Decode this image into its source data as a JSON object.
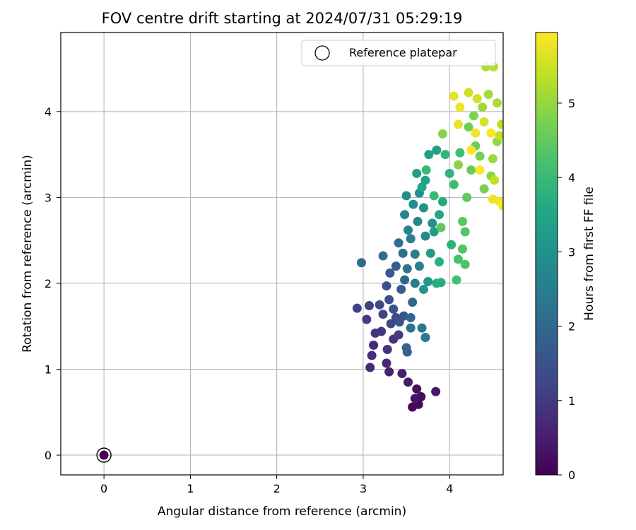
{
  "chart_data": {
    "type": "scatter",
    "title": "FOV centre drift starting at 2024/07/31 05:29:19",
    "xlabel": "Angular distance from reference (arcmin)",
    "ylabel": "Rotation from reference (arcmin)",
    "xlim": [
      -0.5,
      4.62
    ],
    "ylim": [
      -0.23,
      4.92
    ],
    "xticks": [
      "0",
      "1",
      "2",
      "3",
      "4"
    ],
    "yticks": [
      "0",
      "1",
      "2",
      "3",
      "4"
    ],
    "grid": true,
    "legend_position": "top-right",
    "colorbar": {
      "label": "Hours from first FF file",
      "range": [
        0,
        5.95
      ],
      "ticks": [
        "0",
        "1",
        "2",
        "3",
        "4",
        "5"
      ],
      "colormap": "viridis"
    },
    "reference": {
      "name": "Reference platepar",
      "x": 0,
      "y": 0,
      "marker": "open-circle"
    },
    "points_columns": [
      "x",
      "y",
      "hours"
    ],
    "points": [
      [
        0.0,
        0.0,
        0.0
      ],
      [
        3.57,
        0.56,
        0.1
      ],
      [
        3.64,
        0.59,
        0.15
      ],
      [
        3.67,
        0.68,
        0.2
      ],
      [
        3.62,
        0.77,
        0.25
      ],
      [
        3.6,
        0.66,
        0.3
      ],
      [
        3.84,
        0.74,
        0.4
      ],
      [
        3.52,
        0.85,
        0.45
      ],
      [
        3.45,
        0.95,
        0.5
      ],
      [
        3.3,
        0.97,
        0.55
      ],
      [
        3.27,
        1.07,
        0.6
      ],
      [
        3.08,
        1.02,
        0.65
      ],
      [
        3.12,
        1.28,
        0.7
      ],
      [
        3.1,
        1.16,
        0.75
      ],
      [
        3.28,
        1.23,
        0.8
      ],
      [
        3.35,
        1.35,
        0.85
      ],
      [
        3.14,
        1.42,
        0.9
      ],
      [
        3.21,
        1.44,
        0.95
      ],
      [
        3.41,
        1.4,
        1.0
      ],
      [
        3.04,
        1.58,
        1.05
      ],
      [
        3.07,
        1.74,
        1.1
      ],
      [
        2.93,
        1.71,
        1.15
      ],
      [
        3.23,
        1.64,
        1.2
      ],
      [
        3.32,
        1.53,
        1.25
      ],
      [
        3.19,
        1.75,
        1.3
      ],
      [
        3.38,
        1.6,
        1.35
      ],
      [
        3.3,
        1.81,
        1.4
      ],
      [
        3.27,
        1.97,
        1.45
      ],
      [
        3.35,
        1.7,
        1.5
      ],
      [
        3.42,
        1.55,
        1.55
      ],
      [
        3.47,
        1.62,
        1.6
      ],
      [
        3.31,
        2.12,
        1.65
      ],
      [
        3.38,
        2.2,
        1.7
      ],
      [
        3.44,
        1.93,
        1.75
      ],
      [
        3.51,
        1.2,
        1.8
      ],
      [
        3.5,
        1.25,
        1.85
      ],
      [
        3.48,
        2.04,
        1.9
      ],
      [
        3.55,
        1.6,
        1.95
      ],
      [
        3.57,
        1.78,
        2.0
      ],
      [
        2.98,
        2.24,
        2.05
      ],
      [
        3.23,
        2.32,
        2.1
      ],
      [
        3.41,
        2.47,
        2.15
      ],
      [
        3.46,
        2.35,
        2.2
      ],
      [
        3.51,
        2.17,
        2.25
      ],
      [
        3.55,
        1.48,
        2.3
      ],
      [
        3.68,
        1.48,
        2.35
      ],
      [
        3.72,
        1.37,
        2.4
      ],
      [
        3.6,
        2.0,
        2.45
      ],
      [
        3.55,
        2.52,
        2.5
      ],
      [
        3.6,
        2.34,
        2.55
      ],
      [
        3.65,
        2.2,
        2.6
      ],
      [
        3.48,
        2.8,
        2.65
      ],
      [
        3.52,
        2.62,
        2.7
      ],
      [
        3.63,
        2.72,
        2.75
      ],
      [
        3.72,
        2.55,
        2.8
      ],
      [
        3.58,
        2.92,
        2.85
      ],
      [
        3.5,
        3.02,
        2.9
      ],
      [
        3.65,
        3.05,
        2.95
      ],
      [
        3.7,
        2.88,
        3.0
      ],
      [
        3.8,
        2.7,
        3.05
      ],
      [
        3.7,
        1.93,
        3.1
      ],
      [
        3.75,
        2.02,
        3.15
      ],
      [
        3.78,
        2.35,
        3.2
      ],
      [
        3.82,
        2.6,
        3.25
      ],
      [
        3.62,
        3.28,
        3.3
      ],
      [
        3.76,
        3.5,
        3.35
      ],
      [
        3.85,
        3.55,
        3.4
      ],
      [
        3.72,
        3.2,
        3.45
      ],
      [
        3.68,
        3.12,
        3.5
      ],
      [
        3.88,
        2.8,
        3.55
      ],
      [
        3.92,
        2.95,
        3.6
      ],
      [
        3.85,
        2.0,
        3.65
      ],
      [
        3.9,
        2.01,
        3.7
      ],
      [
        3.88,
        2.25,
        3.75
      ],
      [
        4.02,
        2.45,
        3.8
      ],
      [
        4.0,
        3.28,
        3.85
      ],
      [
        3.95,
        3.5,
        3.9
      ],
      [
        3.73,
        3.32,
        3.95
      ],
      [
        3.82,
        3.02,
        4.0
      ],
      [
        4.05,
        3.15,
        4.05
      ],
      [
        4.12,
        3.52,
        4.1
      ],
      [
        4.08,
        2.04,
        4.15
      ],
      [
        4.1,
        2.28,
        4.2
      ],
      [
        4.18,
        2.22,
        4.25
      ],
      [
        4.15,
        2.4,
        4.3
      ],
      [
        4.18,
        2.6,
        4.35
      ],
      [
        4.15,
        2.72,
        4.4
      ],
      [
        3.9,
        2.65,
        4.45
      ],
      [
        4.2,
        3.0,
        4.5
      ],
      [
        4.25,
        3.32,
        4.55
      ],
      [
        4.3,
        3.6,
        4.6
      ],
      [
        4.22,
        3.82,
        4.65
      ],
      [
        4.35,
        3.48,
        4.7
      ],
      [
        4.4,
        3.1,
        4.75
      ],
      [
        4.28,
        3.95,
        4.8
      ],
      [
        3.92,
        3.74,
        4.85
      ],
      [
        4.1,
        3.38,
        4.9
      ],
      [
        4.48,
        3.25,
        4.95
      ],
      [
        4.55,
        3.65,
        5.0
      ],
      [
        4.5,
        3.45,
        5.05
      ],
      [
        4.38,
        4.05,
        5.1
      ],
      [
        4.45,
        4.2,
        5.15
      ],
      [
        4.55,
        4.1,
        5.2
      ],
      [
        4.42,
        4.52,
        5.25
      ],
      [
        4.51,
        4.52,
        5.3
      ],
      [
        4.6,
        3.85,
        5.35
      ],
      [
        4.52,
        3.2,
        5.4
      ],
      [
        4.58,
        3.72,
        5.45
      ],
      [
        4.22,
        4.22,
        5.5
      ],
      [
        4.32,
        4.15,
        5.55
      ],
      [
        4.4,
        3.88,
        5.6
      ],
      [
        4.05,
        4.18,
        5.7
      ],
      [
        4.1,
        3.85,
        5.75
      ],
      [
        4.5,
        2.98,
        5.8
      ],
      [
        4.58,
        2.95,
        5.85
      ],
      [
        4.62,
        2.9,
        5.9
      ],
      [
        4.35,
        3.32,
        5.92
      ],
      [
        4.48,
        3.75,
        5.93
      ],
      [
        4.12,
        4.05,
        5.8
      ],
      [
        4.25,
        3.55,
        5.9
      ],
      [
        4.3,
        3.75,
        5.85
      ]
    ]
  }
}
